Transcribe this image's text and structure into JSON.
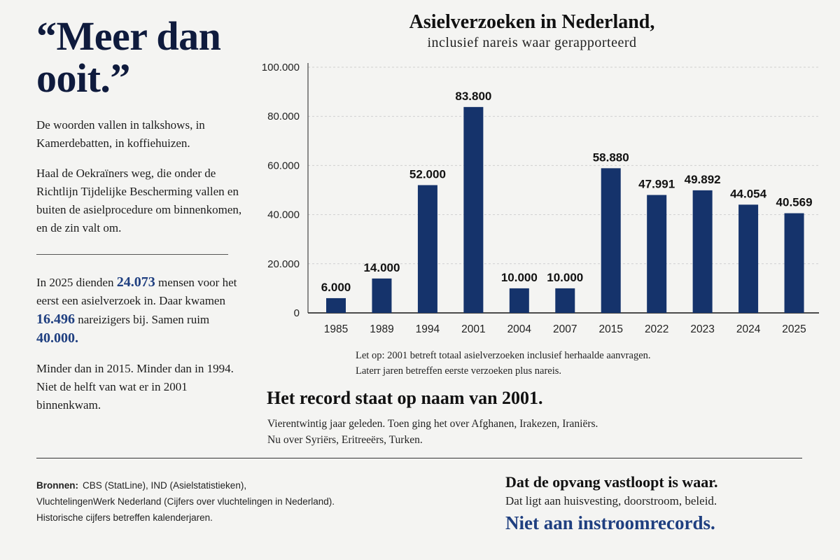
{
  "left": {
    "quote": "“Meer dan ooit.”",
    "p1": "De woorden vallen in talkshows, in Kamerdebatten, in koffiehuizen.",
    "p2": "Haal de Oekraïners weg, die onder de Richtlijn Tijdelijke Bescherming vallen en buiten de asielprocedure om binnenkomen, en de zin valt om.",
    "p3": {
      "t1": "In 2025 dienden ",
      "n1": "24.073",
      "t2": " mensen voor het eerst een asielverzoek in. Daar kwamen ",
      "n2": "16.496",
      "t3": " nareizigers bij. Samen ruim ",
      "n3": "40.000."
    },
    "p4": "Minder dan in 2015. Minder dan in 1994. Niet de helft van wat er in 2001 binnenkwam."
  },
  "note": {
    "line1": "Let op: 2001 betreft totaal asielverzoeken inclusief herhaalde aanvragen.",
    "line2": "Laterr jaren betreffen eerste verzoeken plus nareis."
  },
  "record": {
    "title": "Het record staat op naam van 2001.",
    "line1": "Vierentwintig jaar geleden. Toen ging het over Afghanen, Irakezen, Iraniërs.",
    "line2": "Nu over Syriërs, Eritreeërs, Turken."
  },
  "sources": {
    "label": "Bronnen:",
    "line1": "CBS (StatLine), IND (Asielstatistieken),",
    "line2": "VluchtelingenWerk Nederland (Cijfers over vluchtelingen in Nederland).",
    "line3": "Historische cijfers betreffen kalenderjaren."
  },
  "conclusion": {
    "title": "Dat de opvang vastloopt is waar.",
    "text": "Dat ligt aan huisvesting, doorstroom, beleid.",
    "accent": "Niet aan instroomrecords."
  },
  "colors": {
    "bar": "#15336b",
    "accent": "#1f3f80",
    "quote": "#0f1b3d"
  },
  "chart_data": {
    "type": "bar",
    "title": "Asielverzoeken in Nederland,",
    "subtitle": "inclusief nareis waar gerapporteerd",
    "categories": [
      "1985",
      "1989",
      "1994",
      "2001",
      "2004",
      "2007",
      "2015",
      "2022",
      "2023",
      "2024",
      "2025"
    ],
    "values": [
      6000,
      14000,
      52000,
      83800,
      10000,
      10000,
      58880,
      47991,
      49892,
      44054,
      40569
    ],
    "labels": [
      "6.000",
      "14.000",
      "52.000",
      "83.800",
      "10.000",
      "10.000",
      "58.880",
      "47.991",
      "49.892",
      "44.054",
      "40.569"
    ],
    "yticks": [
      0,
      20000,
      40000,
      60000,
      80000,
      100000
    ],
    "ytick_labels": [
      "0",
      "20.000",
      "40.000",
      "60.000",
      "80.000",
      "100.000"
    ],
    "ylim": [
      0,
      100000
    ],
    "grid": true,
    "xlabel": "",
    "ylabel": ""
  }
}
